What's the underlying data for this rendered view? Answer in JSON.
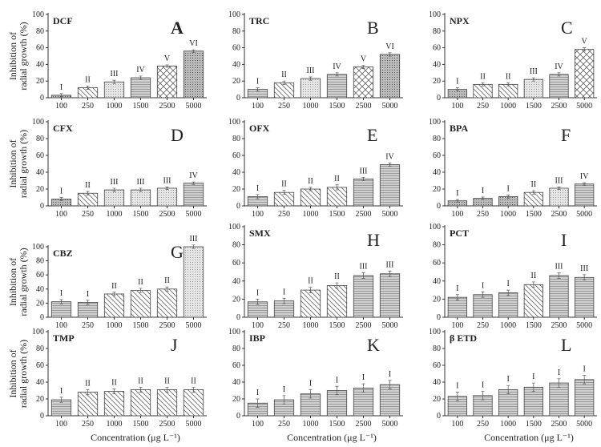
{
  "chart_data": [
    {
      "type": "bar",
      "name": "DCF",
      "letter": "A",
      "categories": [
        "100",
        "250",
        "1000",
        "1500",
        "2500",
        "5000"
      ],
      "values": [
        3,
        12,
        19,
        24,
        38,
        56
      ],
      "errors": [
        2,
        2,
        2,
        2,
        1.5,
        1.5
      ],
      "groups": [
        "I",
        "II",
        "III",
        "IV",
        "V",
        "VI"
      ],
      "patterns": [
        "dense",
        "hatch",
        "light",
        "grid",
        "cross",
        "dense"
      ],
      "ylim": [
        0,
        100
      ]
    },
    {
      "type": "bar",
      "name": "TRC",
      "letter": "B",
      "categories": [
        "100",
        "250",
        "1000",
        "1500",
        "2500",
        "5000"
      ],
      "values": [
        10,
        18,
        23,
        28,
        37,
        52
      ],
      "errors": [
        2,
        2,
        2,
        2,
        2,
        2
      ],
      "groups": [
        "I",
        "II",
        "III",
        "IV",
        "V",
        "VI"
      ],
      "patterns": [
        "grid",
        "hatch",
        "light",
        "grid",
        "cross",
        "dense"
      ],
      "ylim": [
        0,
        100
      ]
    },
    {
      "type": "bar",
      "name": "NPX",
      "letter": "C",
      "categories": [
        "100",
        "250",
        "1000",
        "1500",
        "2500",
        "5000"
      ],
      "values": [
        10,
        16,
        16,
        22,
        28,
        58
      ],
      "errors": [
        2,
        2,
        2,
        2,
        2,
        2
      ],
      "groups": [
        "I",
        "II",
        "II",
        "III",
        "IV",
        "V"
      ],
      "patterns": [
        "dense",
        "hatch",
        "hatch",
        "light",
        "grid",
        "cross"
      ],
      "ylim": [
        0,
        100
      ]
    },
    {
      "type": "bar",
      "name": "CFX",
      "letter": "D",
      "categories": [
        "100",
        "250",
        "1000",
        "1500",
        "2500",
        "5000"
      ],
      "values": [
        8,
        15,
        19,
        19,
        21,
        27
      ],
      "errors": [
        2,
        2,
        2,
        2,
        1.5,
        1.5
      ],
      "groups": [
        "I",
        "II",
        "III",
        "III",
        "III",
        "IV"
      ],
      "patterns": [
        "dense",
        "hatch",
        "light",
        "light",
        "light",
        "grid"
      ],
      "ylim": [
        0,
        100
      ]
    },
    {
      "type": "bar",
      "name": "OFX",
      "letter": "E",
      "categories": [
        "100",
        "250",
        "1000",
        "1500",
        "2500",
        "5000"
      ],
      "values": [
        11,
        16,
        20,
        22,
        32,
        49
      ],
      "errors": [
        2.5,
        2.5,
        2,
        3,
        2,
        2
      ],
      "groups": [
        "I",
        "II",
        "II",
        "II",
        "III",
        "IV"
      ],
      "patterns": [
        "grid",
        "hatch",
        "hatch",
        "hatch",
        "grid",
        "grid"
      ],
      "ylim": [
        0,
        100
      ]
    },
    {
      "type": "bar",
      "name": "BPA",
      "letter": "F",
      "categories": [
        "100",
        "250",
        "1000",
        "1500",
        "2500",
        "5000"
      ],
      "values": [
        6,
        9,
        11,
        16,
        21,
        26
      ],
      "errors": [
        1.5,
        1.5,
        2,
        2,
        1.5,
        1.5
      ],
      "groups": [
        "I",
        "I",
        "I",
        "II",
        "III",
        "IV"
      ],
      "patterns": [
        "dense",
        "dense",
        "dense",
        "hatch",
        "light",
        "grid"
      ],
      "ylim": [
        0,
        100
      ]
    },
    {
      "type": "bar",
      "name": "CBZ",
      "letter": "G",
      "categories": [
        "100",
        "250",
        "1000",
        "1500",
        "2500",
        "5000"
      ],
      "values": [
        22,
        21,
        33,
        38,
        40,
        100
      ],
      "errors": [
        3,
        3,
        2.5,
        3,
        3,
        2.5
      ],
      "groups": [
        "I",
        "I",
        "II",
        "II",
        "II",
        "III"
      ],
      "patterns": [
        "grid",
        "grid",
        "hatch",
        "hatch",
        "hatch",
        "light"
      ],
      "ylim": [
        0,
        100
      ]
    },
    {
      "type": "bar",
      "name": "SMX",
      "letter": "H",
      "categories": [
        "100",
        "250",
        "1000",
        "1500",
        "2500",
        "5000"
      ],
      "values": [
        17,
        18,
        30,
        35,
        46,
        48
      ],
      "errors": [
        3,
        3,
        3,
        3,
        3,
        3
      ],
      "groups": [
        "I",
        "I",
        "II",
        "II",
        "III",
        "III"
      ],
      "patterns": [
        "grid",
        "grid",
        "hatch",
        "hatch",
        "grid",
        "grid"
      ],
      "ylim": [
        0,
        100
      ]
    },
    {
      "type": "bar",
      "name": "PCT",
      "letter": "I",
      "categories": [
        "100",
        "250",
        "1000",
        "1500",
        "2500",
        "5000"
      ],
      "values": [
        22,
        25,
        27,
        36,
        46,
        44
      ],
      "errors": [
        3,
        3,
        3,
        3,
        3,
        3
      ],
      "groups": [
        "I",
        "I",
        "I",
        "II",
        "III",
        "III"
      ],
      "patterns": [
        "grid",
        "grid",
        "grid",
        "hatch",
        "grid",
        "grid"
      ],
      "ylim": [
        0,
        100
      ]
    },
    {
      "type": "bar",
      "name": "TMP",
      "letter": "J",
      "categories": [
        "100",
        "250",
        "1000",
        "1500",
        "2500",
        "5000"
      ],
      "values": [
        19,
        28,
        29,
        31,
        31,
        31
      ],
      "errors": [
        3,
        3,
        3,
        3,
        3,
        3
      ],
      "groups": [
        "I",
        "II",
        "II",
        "II",
        "II",
        "II"
      ],
      "patterns": [
        "grid",
        "hatch",
        "hatch",
        "hatch",
        "hatch",
        "hatch"
      ],
      "ylim": [
        0,
        100
      ]
    },
    {
      "type": "bar",
      "name": "IBP",
      "letter": "K",
      "categories": [
        "100",
        "250",
        "1000",
        "1500",
        "2500",
        "5000"
      ],
      "values": [
        15,
        19,
        26,
        30,
        33,
        37
      ],
      "errors": [
        5,
        5,
        5,
        5,
        5,
        5
      ],
      "groups": [
        "I",
        "I",
        "I",
        "I",
        "I",
        "I"
      ],
      "patterns": [
        "grid",
        "grid",
        "grid",
        "grid",
        "grid",
        "grid"
      ],
      "ylim": [
        0,
        100
      ]
    },
    {
      "type": "bar",
      "name": "β ETD",
      "letter": "L",
      "categories": [
        "100",
        "250",
        "1000",
        "1500",
        "2500",
        "5000"
      ],
      "values": [
        23,
        24,
        31,
        34,
        39,
        43
      ],
      "errors": [
        5,
        5,
        5,
        5,
        5,
        5
      ],
      "groups": [
        "I",
        "I",
        "I",
        "I",
        "I",
        "I"
      ],
      "patterns": [
        "grid",
        "grid",
        "grid",
        "grid",
        "grid",
        "grid"
      ],
      "ylim": [
        0,
        100
      ]
    }
  ],
  "ylabel": [
    "Inhibition of",
    "radial growth (%)"
  ],
  "xlabel": "Concentration (μg L⁻¹)",
  "yticks": [
    0,
    20,
    40,
    60,
    80,
    100
  ]
}
